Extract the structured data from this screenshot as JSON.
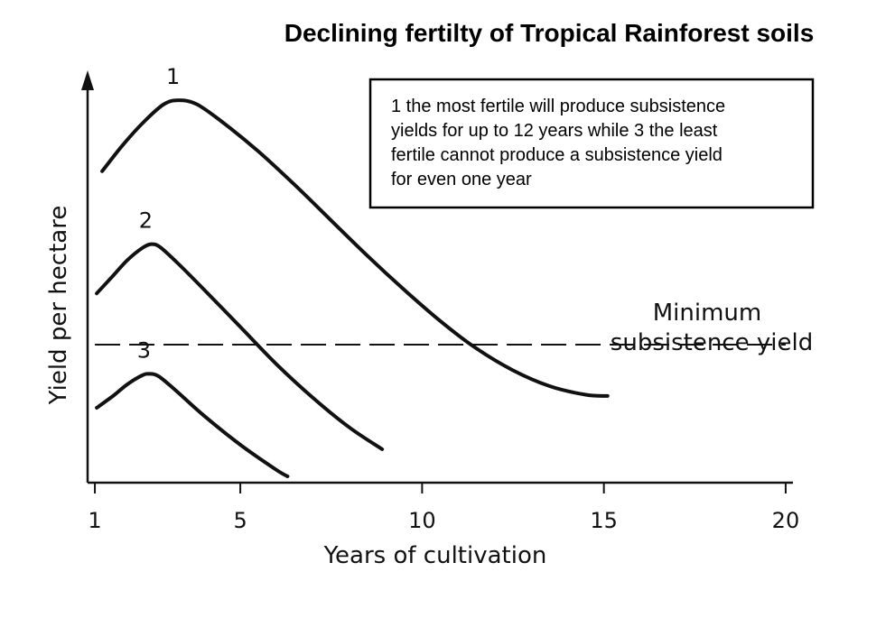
{
  "chart_data": {
    "type": "line",
    "title": "Declining fertilty of Tropical Rainforest soils",
    "xlabel": "Years of cultivation",
    "ylabel": "Yield per hectare",
    "xlim": [
      0.8,
      20.2
    ],
    "ylim": [
      0,
      100
    ],
    "x_ticks": [
      1,
      5,
      10,
      15,
      20
    ],
    "grid": false,
    "legend": "none",
    "note": [
      "1 the most fertile will produce subsistence",
      "yields for up to 12 years while 3 the least",
      "fertile cannot produce a subsistence yield",
      "for even one year"
    ],
    "threshold": {
      "label": [
        "Minimum",
        "subsistence yield"
      ],
      "x_start": 1,
      "x_end": 20,
      "y": 35
    },
    "series": [
      {
        "name": "1",
        "x": [
          1.2,
          1.8,
          2.4,
          2.9,
          3.3,
          3.8,
          4.5,
          5.5,
          6.5,
          7.5,
          8.5,
          9.5,
          10.5,
          11.5,
          12.5,
          13.5,
          14.5,
          15.1
        ],
        "y": [
          79,
          86,
          92,
          96,
          97,
          96,
          91.5,
          84,
          75.5,
          66.5,
          57.5,
          49,
          41,
          34,
          28.5,
          24.5,
          22.3,
          22
        ]
      },
      {
        "name": "2",
        "x": [
          1.05,
          1.5,
          1.9,
          2.3,
          2.55,
          2.8,
          3.3,
          4.0,
          5.0,
          6.0,
          7.0,
          8.0,
          8.9
        ],
        "y": [
          48,
          52.5,
          56.5,
          59.5,
          60.5,
          59.7,
          55.5,
          49,
          39.5,
          30,
          21.5,
          14,
          8.5
        ]
      },
      {
        "name": "3",
        "x": [
          1.05,
          1.5,
          1.9,
          2.3,
          2.5,
          2.75,
          3.2,
          4.0,
          5.0,
          6.0,
          6.3
        ],
        "y": [
          19,
          22,
          25,
          27.2,
          27.6,
          27,
          23.6,
          17,
          9.6,
          3.2,
          1.6
        ]
      }
    ]
  }
}
